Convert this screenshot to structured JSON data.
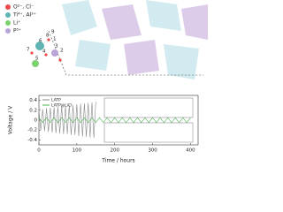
{
  "structure": {
    "legend": [
      {
        "label": "O²⁻, Cl⁻",
        "color": "#e94b4b"
      },
      {
        "label": "Ti⁴⁺, Al³⁺",
        "color": "#5fb3b3"
      },
      {
        "label": "Li⁺",
        "color": "#7cd36b"
      },
      {
        "label": "P⁵⁺",
        "color": "#b9a5d8"
      }
    ],
    "site_labels": [
      "1",
      "2",
      "3",
      "4",
      "5",
      "6",
      "7",
      "8",
      "9"
    ]
  },
  "chart_data": {
    "type": "line",
    "xlabel": "Time / hours",
    "ylabel": "Voltage / V",
    "xlim": [
      0,
      420
    ],
    "xticks": [
      0,
      100,
      200,
      300,
      400
    ],
    "ylim": [
      -0.5,
      0.5
    ],
    "yticks": [
      -0.4,
      -0.2,
      0.0,
      0.2,
      0.4
    ],
    "series": [
      {
        "name": "LATP",
        "color": "#8a8a8a",
        "x": [
          0,
          5,
          10,
          15,
          20,
          25,
          30,
          35,
          40,
          45,
          50,
          55,
          60,
          65,
          70,
          75,
          80,
          85,
          90,
          95,
          100,
          105,
          110,
          115,
          120,
          125,
          130,
          135,
          140,
          145,
          150
        ],
        "values": [
          0.2,
          -0.2,
          0.22,
          -0.22,
          0.24,
          -0.24,
          0.25,
          -0.25,
          0.26,
          -0.26,
          0.27,
          -0.27,
          0.28,
          -0.28,
          0.28,
          -0.28,
          0.3,
          -0.3,
          0.3,
          -0.3,
          0.32,
          -0.32,
          0.33,
          -0.33,
          0.34,
          -0.34,
          0.35,
          -0.35,
          0.36,
          -0.36,
          0.37
        ]
      },
      {
        "name": "LATP@LiCl",
        "color": "#4caf50",
        "x": [
          0,
          10,
          20,
          30,
          40,
          50,
          60,
          70,
          80,
          90,
          100,
          110,
          120,
          130,
          140,
          150,
          160,
          170,
          180,
          190,
          200,
          210,
          220,
          230,
          240,
          250,
          260,
          270,
          280,
          290,
          300,
          310,
          320,
          330,
          340,
          350,
          360,
          370,
          380,
          390,
          400
        ],
        "values": [
          0.05,
          -0.05,
          0.05,
          -0.05,
          0.05,
          -0.05,
          0.05,
          -0.05,
          0.05,
          -0.05,
          0.05,
          -0.05,
          0.05,
          -0.05,
          0.05,
          -0.05,
          0.05,
          -0.05,
          0.05,
          -0.05,
          0.05,
          -0.05,
          0.05,
          -0.05,
          0.05,
          -0.05,
          0.05,
          -0.05,
          0.05,
          -0.05,
          0.05,
          -0.05,
          0.05,
          -0.05,
          0.05,
          -0.05,
          0.05,
          -0.05,
          0.05,
          -0.05,
          0.05
        ]
      }
    ]
  }
}
